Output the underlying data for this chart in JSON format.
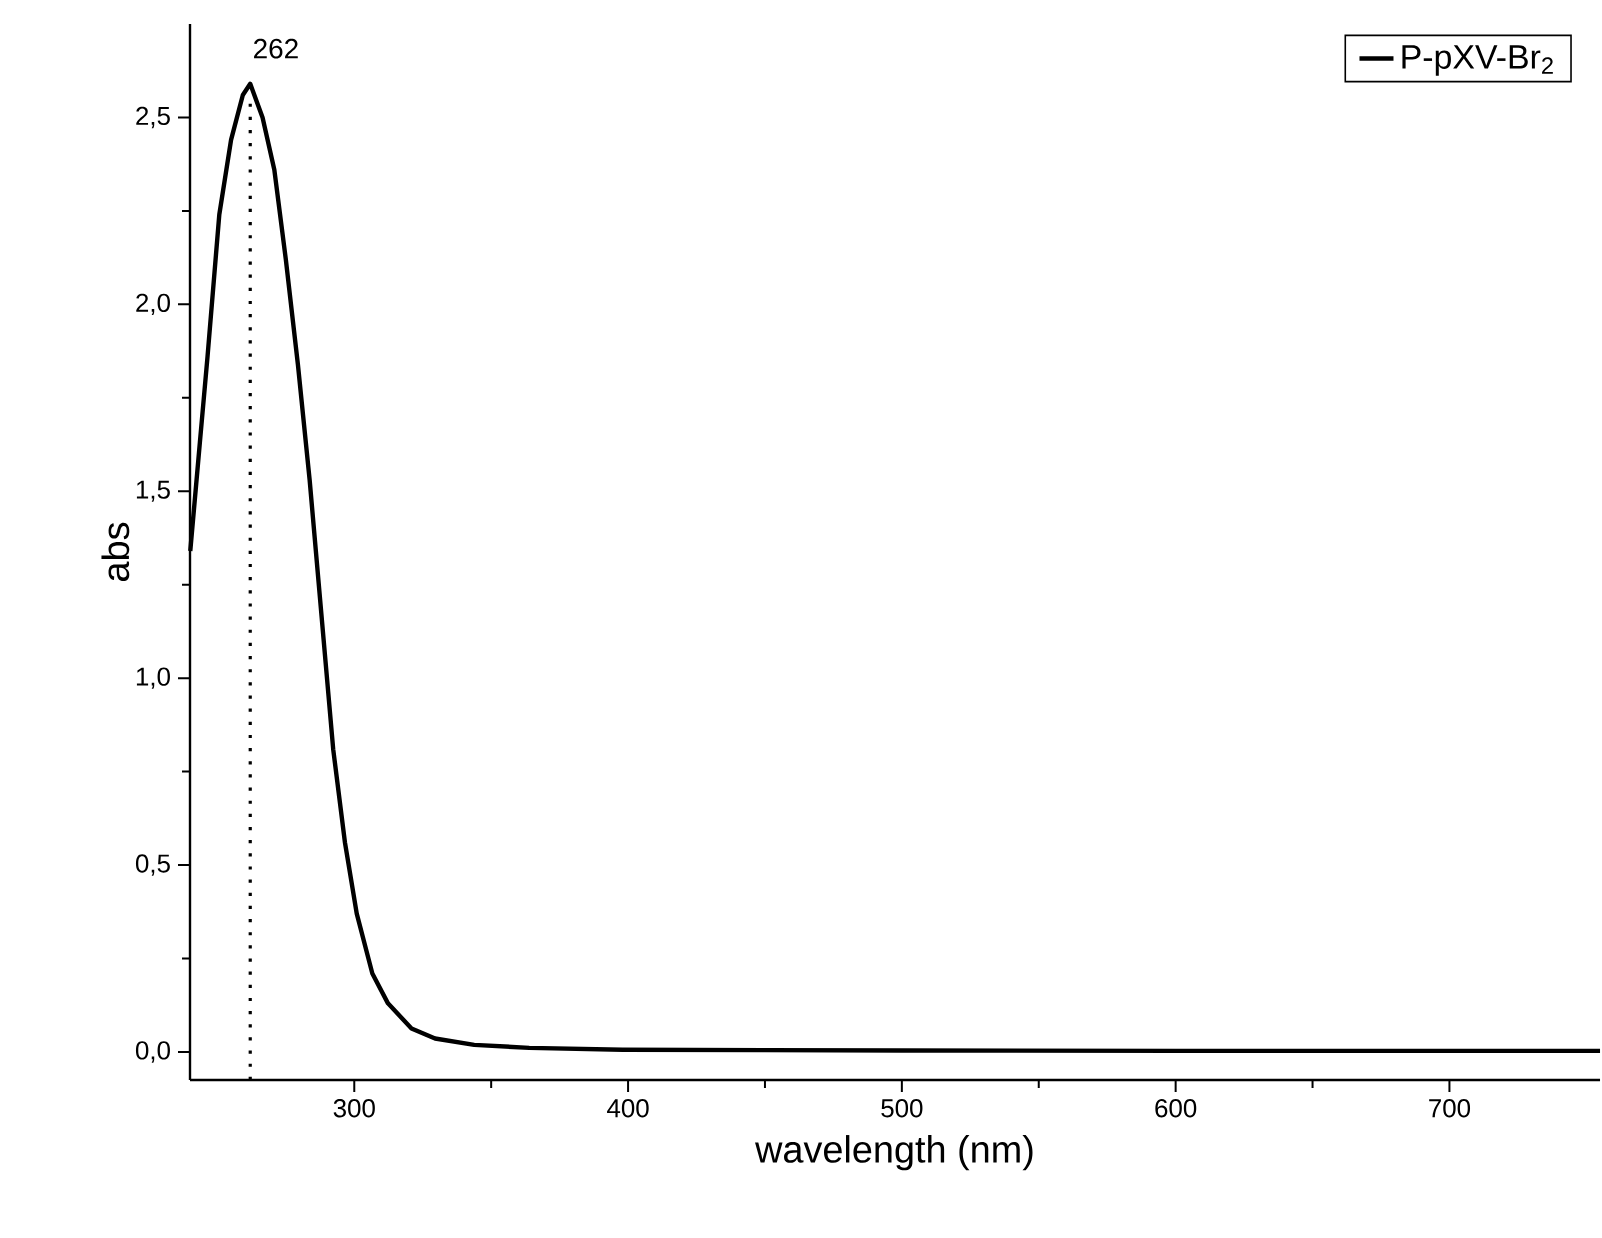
{
  "chart_data": {
    "type": "line",
    "xlabel": "wavelength (nm)",
    "ylabel": "abs",
    "xlim": [
      240,
      755
    ],
    "ylim": [
      -0.075,
      2.75
    ],
    "xticks": [
      300,
      400,
      500,
      600,
      700
    ],
    "yticks": [
      {
        "value": 0,
        "label": "0,0"
      },
      {
        "value": 0.5,
        "label": "0,5"
      },
      {
        "value": 1,
        "label": "1,0"
      },
      {
        "value": 1.5,
        "label": "1,5"
      },
      {
        "value": 2,
        "label": "2,0"
      },
      {
        "value": 2.5,
        "label": "2,5"
      }
    ],
    "series": [
      {
        "name": "P-pXV-Br$_{2}$",
        "color": "#000000",
        "x": [
          240.1,
          243.6,
          246.4,
          250.7,
          255,
          259.3,
          262,
          266.5,
          270.8,
          275,
          279.4,
          283.7,
          288,
          292.3,
          296.6,
          300.9,
          306.6,
          312.3,
          320.9,
          329.5,
          343.8,
          363.9,
          398,
          450,
          500,
          600,
          700,
          755
        ],
        "values": [
          1.34,
          1.63,
          1.86,
          2.24,
          2.44,
          2.56,
          2.59,
          2.5,
          2.36,
          2.12,
          1.84,
          1.53,
          1.17,
          0.81,
          0.56,
          0.37,
          0.21,
          0.13,
          0.063,
          0.036,
          0.019,
          0.011,
          0.006,
          0.005,
          0.004,
          0.003,
          0.003,
          0.003
        ]
      }
    ],
    "ref_lines": [
      {
        "axis": "x",
        "value": 262,
        "label": "262",
        "line_style": "dotted",
        "color": "#000000"
      }
    ],
    "legend": "top right",
    "marker": "none",
    "line_style": "solid",
    "grid": false
  }
}
